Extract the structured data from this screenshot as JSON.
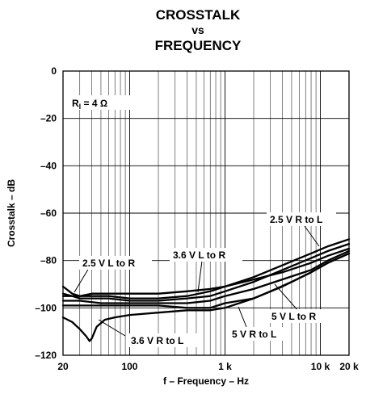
{
  "chart_data": {
    "type": "line",
    "title_lines": [
      "CROSSTALK",
      "vs",
      "FREQUENCY"
    ],
    "xlabel": "f – Frequency – Hz",
    "ylabel": "Crosstalk – dB",
    "xscale": "log",
    "xlim": [
      20,
      20000
    ],
    "ylim": [
      -120,
      0
    ],
    "grid": true,
    "x_ticks": [
      {
        "value": 20,
        "label": "20"
      },
      {
        "value": 100,
        "label": "100"
      },
      {
        "value": 1000,
        "label": "1 k"
      },
      {
        "value": 10000,
        "label": "10 k"
      },
      {
        "value": 20000,
        "label": "20 k"
      }
    ],
    "y_ticks": [
      {
        "value": 0,
        "label": "0"
      },
      {
        "value": -20,
        "label": "–20"
      },
      {
        "value": -40,
        "label": "–40"
      },
      {
        "value": -60,
        "label": "–60"
      },
      {
        "value": -80,
        "label": "–80"
      },
      {
        "value": -100,
        "label": "–100"
      },
      {
        "value": -120,
        "label": "–120"
      }
    ],
    "condition": {
      "prefix": "R",
      "sub": "l",
      "suffix": " = 4 Ω"
    },
    "series": [
      {
        "name": "2.5 V R to L",
        "points": [
          [
            20,
            -91
          ],
          [
            25,
            -94
          ],
          [
            30,
            -95
          ],
          [
            40,
            -95
          ],
          [
            60,
            -95
          ],
          [
            100,
            -96
          ],
          [
            200,
            -96
          ],
          [
            400,
            -95
          ],
          [
            700,
            -93
          ],
          [
            1000,
            -91
          ],
          [
            2000,
            -87
          ],
          [
            4000,
            -82
          ],
          [
            8000,
            -77
          ],
          [
            12000,
            -74
          ],
          [
            20000,
            -71
          ]
        ]
      },
      {
        "name": "2.5 V L to R",
        "points": [
          [
            20,
            -94
          ],
          [
            25,
            -95
          ],
          [
            30,
            -96
          ],
          [
            40,
            -96
          ],
          [
            60,
            -96
          ],
          [
            100,
            -97
          ],
          [
            200,
            -97
          ],
          [
            400,
            -96
          ],
          [
            700,
            -95
          ],
          [
            1000,
            -93
          ],
          [
            2000,
            -89
          ],
          [
            4000,
            -84
          ],
          [
            8000,
            -79
          ],
          [
            12000,
            -76
          ],
          [
            20000,
            -73
          ]
        ]
      },
      {
        "name": "3.6 V L to R",
        "points": [
          [
            20,
            -95
          ],
          [
            30,
            -95
          ],
          [
            40,
            -94
          ],
          [
            60,
            -94
          ],
          [
            100,
            -94
          ],
          [
            200,
            -94
          ],
          [
            400,
            -93
          ],
          [
            700,
            -92
          ],
          [
            1000,
            -91
          ],
          [
            2000,
            -88
          ],
          [
            4000,
            -85
          ],
          [
            8000,
            -81
          ],
          [
            12000,
            -78
          ],
          [
            20000,
            -75
          ]
        ]
      },
      {
        "name": "5 V L to R",
        "points": [
          [
            20,
            -97
          ],
          [
            30,
            -97
          ],
          [
            50,
            -98
          ],
          [
            100,
            -98
          ],
          [
            200,
            -98
          ],
          [
            400,
            -98
          ],
          [
            700,
            -97
          ],
          [
            1000,
            -95
          ],
          [
            2000,
            -92
          ],
          [
            4000,
            -88
          ],
          [
            8000,
            -84
          ],
          [
            12000,
            -80
          ],
          [
            20000,
            -76
          ]
        ]
      },
      {
        "name": "5 V R to L",
        "points": [
          [
            20,
            -99
          ],
          [
            30,
            -99
          ],
          [
            50,
            -99
          ],
          [
            100,
            -99
          ],
          [
            200,
            -99
          ],
          [
            400,
            -100
          ],
          [
            700,
            -100
          ],
          [
            1000,
            -98
          ],
          [
            2000,
            -96
          ],
          [
            3000,
            -93
          ],
          [
            5000,
            -89
          ],
          [
            8000,
            -85
          ],
          [
            12000,
            -81
          ],
          [
            20000,
            -77
          ]
        ]
      },
      {
        "name": "3.6 V R to L",
        "points": [
          [
            20,
            -104
          ],
          [
            25,
            -106
          ],
          [
            30,
            -109
          ],
          [
            35,
            -112
          ],
          [
            38,
            -114
          ],
          [
            40,
            -113
          ],
          [
            45,
            -108
          ],
          [
            55,
            -105
          ],
          [
            70,
            -104
          ],
          [
            100,
            -103
          ],
          [
            200,
            -102
          ],
          [
            400,
            -101
          ],
          [
            700,
            -101
          ],
          [
            1000,
            -100
          ],
          [
            2000,
            -96
          ],
          [
            4000,
            -91
          ],
          [
            8000,
            -85
          ],
          [
            12000,
            -81
          ],
          [
            20000,
            -77
          ]
        ]
      }
    ],
    "annotations": [
      {
        "text": "2.5 V R to L"
      },
      {
        "text": "2.5 V L to R"
      },
      {
        "text": "3.6 V L to R"
      },
      {
        "text": "5 V L to R"
      },
      {
        "text": "5 V R to L"
      },
      {
        "text": "3.6 V R to L"
      }
    ]
  }
}
